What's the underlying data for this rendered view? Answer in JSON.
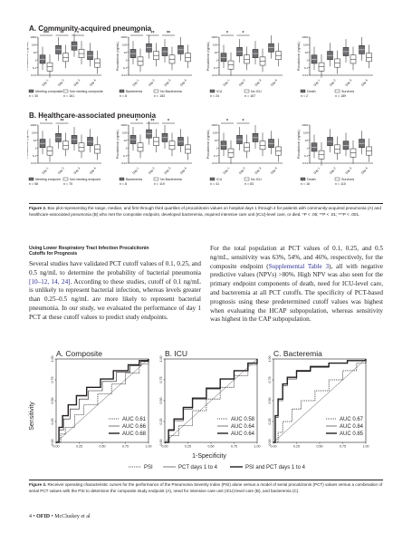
{
  "figure2": {
    "panel_a_title": "A. Community-acquired pneumonia",
    "panel_b_title": "B. Healthcare-associated pneumonia",
    "ylabel": "Procalcitonin (ng/mL)",
    "yticks": [
      "1000",
      "100",
      "10",
      "1",
      "0.1",
      "0.01"
    ],
    "day_labels": [
      "Day 1",
      "Day 2",
      "Day 3",
      "Day 4"
    ],
    "community": [
      {
        "sig": [
          "***",
          "**",
          "*"
        ],
        "legend": [
          {
            "label": "Meeting composite",
            "n": "n = 30"
          },
          {
            "label": "Not meeting composite",
            "n": "n = 161"
          }
        ]
      },
      {
        "sig": [
          "***",
          "**",
          "**"
        ],
        "legend": [
          {
            "label": "Bacteremia",
            "n": "n = 8"
          },
          {
            "label": "No Bacteremia",
            "n": "n = 183"
          }
        ]
      },
      {
        "sig": [
          "*",
          "*"
        ],
        "legend": [
          {
            "label": "ICU",
            "n": "n = 24"
          },
          {
            "label": "No ICU",
            "n": "n = 167"
          }
        ]
      },
      {
        "sig": [],
        "legend": [
          {
            "label": "Death",
            "n": "n = 2"
          },
          {
            "label": "Survived",
            "n": "n = 189"
          }
        ]
      }
    ],
    "healthcare": [
      {
        "sig": [
          "*",
          "**"
        ],
        "legend": [
          {
            "label": "Meeting endpoint",
            "n": "n = 58"
          },
          {
            "label": "Not meeting endpoint",
            "n": "n = 70"
          }
        ]
      },
      {
        "sig": [
          "*",
          "**",
          "*"
        ],
        "legend": [
          {
            "label": "Bacteremia",
            "n": "n = 8"
          },
          {
            "label": "No Bacteremia",
            "n": "n = 119"
          }
        ]
      },
      {
        "sig": [
          "*",
          "*"
        ],
        "legend": [
          {
            "label": "ICU",
            "n": "n = 41"
          },
          {
            "label": "No ICU",
            "n": "n = 83"
          }
        ]
      },
      {
        "sig": [],
        "legend": [
          {
            "label": "Death",
            "n": "n = 16"
          },
          {
            "label": "Survived",
            "n": "n = 110"
          }
        ]
      }
    ],
    "caption_label": "Figure 2.",
    "caption_text": "Box plot representing the range, median, and first through third quartiles of procalcitonin values on hospital days 1 through 4 for patients with community-acquired pneumonia (A) and healthcare-associated pneumonia (B) who met the composite endpoint, developed bacteremia, required intensive care unit (ICU)-level care, or died. *P < .05; **P < .01; ***P < .001."
  },
  "section": {
    "heading_line1": "Using Lower Respiratory Tract Infection Procalcitonin",
    "heading_line2": "Cutoffs for Prognosis",
    "left_para_1": "Several studies have validated PCT cutoff values of 0.1, 0.25, and 0.5 ng/mL to determine the probability of bacterial pneumonia ",
    "left_para_ref": "[10–12, 14, 24]",
    "left_para_2": ". According to these studies, cutoff of 0.1 ng/mL is unlikely to represent bacterial infection, whereas levels greater than 0.25–0.5 ng/mL are more likely to represent bacterial pneumonia. In our study, we evaluated the performance of day 1 PCT at these cutoff values to predict study endpoints.",
    "right_para_1": "For the total population at PCT values of 0.1, 0.25, and 0.5 ng/mL, sensitivity was 63%, 54%, and 46%, respectively, for the composite endpoint (",
    "right_para_link": "Supplemental Table 3",
    "right_para_2": "), all with negative predictive values (NPVs) >80%. High NPV was also seen for the primary endpoint components of death, need for ICU-level care, and bacteremia at all PCT cutoffs. The specificity of PCT-based prognosis using these predetermined cutoff values was highest when evaluating the HCAP subpopulation, whereas sensitivity was highest in the CAP subpopulation."
  },
  "figure3": {
    "ylabel": "Sensitivity",
    "xlabel": "1-Specificity",
    "ticks": [
      "0.00",
      "0.25",
      "0.50",
      "0.75",
      "1.00"
    ],
    "legend_psi": "PSI",
    "legend_pct": "PCT days 1 to 4",
    "legend_both": "PSI and PCT days 1 to 4",
    "caption_label": "Figure 3.",
    "caption_text": "Receiver operating characteristic curves for the performance of the Pneumonia Severity Index (PSI) alone versus a model of serial procalcitonin (PCT) values versus a combination of serial PCT values with the PSI to determine the composite study endpoint (A), need for intensive care unit (ICU)-level care (B), and bacteremia (C)."
  },
  "chart_data": [
    {
      "type": "line",
      "title": "A. Composite",
      "xlabel": "1-Specificity",
      "ylabel": "Sensitivity",
      "xlim": [
        0,
        1
      ],
      "ylim": [
        0,
        1
      ],
      "series": [
        {
          "name": "PSI",
          "style": "dotted",
          "auc": "AUC 0.61",
          "x": [
            0,
            0.05,
            0.1,
            0.2,
            0.3,
            0.45,
            0.6,
            0.75,
            0.9,
            1
          ],
          "y": [
            0,
            0.1,
            0.18,
            0.33,
            0.45,
            0.58,
            0.7,
            0.83,
            0.94,
            1
          ]
        },
        {
          "name": "PCT days 1 to 4",
          "style": "thin",
          "auc": "AUC 0.66",
          "x": [
            0,
            0.03,
            0.08,
            0.15,
            0.25,
            0.35,
            0.5,
            0.65,
            0.8,
            0.92,
            1
          ],
          "y": [
            0,
            0.15,
            0.28,
            0.4,
            0.52,
            0.62,
            0.73,
            0.84,
            0.92,
            0.97,
            1
          ]
        },
        {
          "name": "PSI and PCT days 1 to 4",
          "style": "thick",
          "auc": "AUC 0.68",
          "x": [
            0,
            0.03,
            0.07,
            0.13,
            0.22,
            0.33,
            0.48,
            0.62,
            0.78,
            0.9,
            1
          ],
          "y": [
            0,
            0.18,
            0.32,
            0.45,
            0.56,
            0.66,
            0.76,
            0.86,
            0.93,
            0.98,
            1
          ]
        }
      ]
    },
    {
      "type": "line",
      "title": "B. ICU",
      "xlabel": "1-Specificity",
      "ylabel": "Sensitivity",
      "xlim": [
        0,
        1
      ],
      "ylim": [
        0,
        1
      ],
      "series": [
        {
          "name": "PSI",
          "style": "dotted",
          "auc": "AUC 0.58",
          "x": [
            0,
            0.05,
            0.15,
            0.3,
            0.45,
            0.6,
            0.75,
            0.9,
            1
          ],
          "y": [
            0,
            0.08,
            0.2,
            0.38,
            0.52,
            0.66,
            0.8,
            0.93,
            1
          ]
        },
        {
          "name": "PCT days 1 to 4",
          "style": "thin",
          "auc": "AUC 0.64",
          "x": [
            0,
            0.04,
            0.1,
            0.2,
            0.3,
            0.45,
            0.6,
            0.75,
            0.9,
            1
          ],
          "y": [
            0,
            0.14,
            0.26,
            0.4,
            0.52,
            0.64,
            0.76,
            0.86,
            0.95,
            1
          ]
        },
        {
          "name": "PSI and PCT days 1 to 4",
          "style": "thick",
          "auc": "AUC 0.64",
          "x": [
            0,
            0.04,
            0.1,
            0.2,
            0.3,
            0.45,
            0.6,
            0.75,
            0.9,
            1
          ],
          "y": [
            0,
            0.15,
            0.28,
            0.42,
            0.53,
            0.65,
            0.76,
            0.86,
            0.95,
            1
          ]
        }
      ]
    },
    {
      "type": "line",
      "title": "C. Bacteremia",
      "xlabel": "1-Specificity",
      "ylabel": "Sensitivity",
      "xlim": [
        0,
        1
      ],
      "ylim": [
        0,
        1
      ],
      "series": [
        {
          "name": "PSI",
          "style": "dotted",
          "auc": "AUC 0.67",
          "x": [
            0,
            0.05,
            0.1,
            0.2,
            0.3,
            0.45,
            0.6,
            0.75,
            0.9,
            1
          ],
          "y": [
            0,
            0.12,
            0.25,
            0.4,
            0.5,
            0.62,
            0.75,
            0.86,
            0.95,
            1
          ]
        },
        {
          "name": "PCT days 1 to 4",
          "style": "thin",
          "auc": "AUC 0.84",
          "x": [
            0,
            0.02,
            0.05,
            0.1,
            0.15,
            0.25,
            0.4,
            0.6,
            0.8,
            1
          ],
          "y": [
            0,
            0.3,
            0.5,
            0.68,
            0.76,
            0.85,
            0.9,
            0.95,
            0.98,
            1
          ]
        },
        {
          "name": "PSI and PCT days 1 to 4",
          "style": "thick",
          "auc": "AUC 0.85",
          "x": [
            0,
            0.02,
            0.05,
            0.1,
            0.15,
            0.25,
            0.4,
            0.6,
            0.8,
            1
          ],
          "y": [
            0,
            0.32,
            0.52,
            0.7,
            0.78,
            0.86,
            0.91,
            0.95,
            0.98,
            1
          ]
        }
      ]
    }
  ],
  "footer": {
    "page": "4",
    "bullet": "•",
    "journal": "OFID",
    "authors": "•  McCluskey et al"
  }
}
